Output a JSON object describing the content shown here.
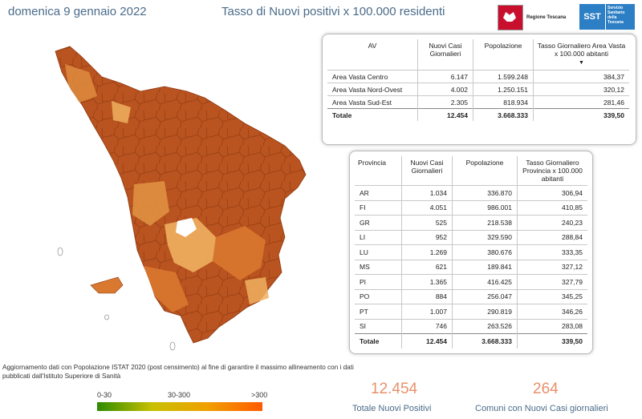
{
  "header": {
    "date": "domenica 9 gennaio 2022",
    "title": "Tasso di Nuovi positivi x 100.000 residenti",
    "logo_regione": "Regione Toscana",
    "logo_sst_short": "SST",
    "logo_sst_long": "Servizio Sanitario della Toscana"
  },
  "av_table": {
    "headers": [
      "AV",
      "Nuovi Casi Giornalieri",
      "Popolazione",
      "Tasso Giornaliero Area Vasta x 100.000 abitanti"
    ],
    "rows": [
      {
        "name": "Area Vasta Centro",
        "casi": "6.147",
        "pop": "1.599.248",
        "tasso": "384,37"
      },
      {
        "name": "Area Vasta Nord-Ovest",
        "casi": "4.002",
        "pop": "1.250.151",
        "tasso": "320,12"
      },
      {
        "name": "Area Vasta Sud-Est",
        "casi": "2.305",
        "pop": "818.934",
        "tasso": "281,46"
      }
    ],
    "total": {
      "name": "Totale",
      "casi": "12.454",
      "pop": "3.668.333",
      "tasso": "339,50"
    }
  },
  "prov_table": {
    "headers": [
      "Provincia",
      "Nuovi Casi Giornalieri",
      "Popolazione",
      "Tasso Giornaliero Provincia x 100.000 abitanti"
    ],
    "rows": [
      {
        "name": "AR",
        "casi": "1.034",
        "pop": "336.870",
        "tasso": "306,94"
      },
      {
        "name": "FI",
        "casi": "4.051",
        "pop": "986.001",
        "tasso": "410,85"
      },
      {
        "name": "GR",
        "casi": "525",
        "pop": "218.538",
        "tasso": "240,23"
      },
      {
        "name": "LI",
        "casi": "952",
        "pop": "329.590",
        "tasso": "288,84"
      },
      {
        "name": "LU",
        "casi": "1.269",
        "pop": "380.676",
        "tasso": "333,35"
      },
      {
        "name": "MS",
        "casi": "621",
        "pop": "189.841",
        "tasso": "327,12"
      },
      {
        "name": "PI",
        "casi": "1.365",
        "pop": "416.425",
        "tasso": "327,79"
      },
      {
        "name": "PO",
        "casi": "884",
        "pop": "256.047",
        "tasso": "345,25"
      },
      {
        "name": "PT",
        "casi": "1.007",
        "pop": "290.819",
        "tasso": "346,26"
      },
      {
        "name": "SI",
        "casi": "746",
        "pop": "263.526",
        "tasso": "283,08"
      }
    ],
    "total": {
      "name": "Totale",
      "casi": "12.454",
      "pop": "3.668.333",
      "tasso": "339,50"
    }
  },
  "note": "Aggiornamento dati con Popolazione ISTAT 2020 (post censimento) al fine di garantire il massimo allineamento con i dati pubblicati dall'Istituto Superiore di Sanità",
  "legend": {
    "low": "0-30",
    "mid": "30-300",
    "high": ">300"
  },
  "kpis": [
    {
      "value": "12.454",
      "label": "Totale Nuovi Positivi"
    },
    {
      "value": "264",
      "label": "Comuni con Nuovi Casi giornalieri"
    }
  ],
  "colors": {
    "dark": "#b5501e",
    "mid": "#d9782f",
    "light": "#f0b060",
    "title": "#4a6b8a",
    "kpi": "#e8906a"
  }
}
